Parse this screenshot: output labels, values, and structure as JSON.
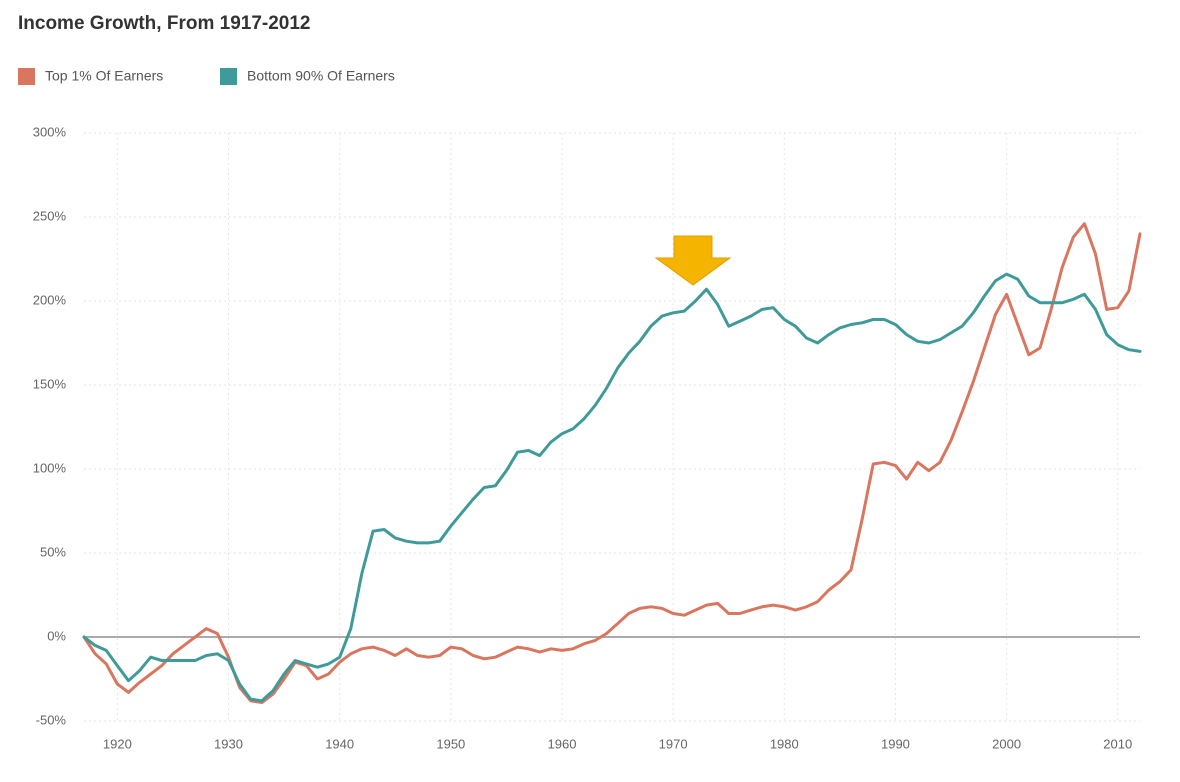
{
  "chart_data": {
    "type": "line",
    "title": "Income Growth, From 1917-2012",
    "x": [
      1917,
      1918,
      1919,
      1920,
      1921,
      1922,
      1923,
      1924,
      1925,
      1926,
      1927,
      1928,
      1929,
      1930,
      1931,
      1932,
      1933,
      1934,
      1935,
      1936,
      1937,
      1938,
      1939,
      1940,
      1941,
      1942,
      1943,
      1944,
      1945,
      1946,
      1947,
      1948,
      1949,
      1950,
      1951,
      1952,
      1953,
      1954,
      1955,
      1956,
      1957,
      1958,
      1959,
      1960,
      1961,
      1962,
      1963,
      1964,
      1965,
      1966,
      1967,
      1968,
      1969,
      1970,
      1971,
      1972,
      1973,
      1974,
      1975,
      1976,
      1977,
      1978,
      1979,
      1980,
      1981,
      1982,
      1983,
      1984,
      1985,
      1986,
      1987,
      1988,
      1989,
      1990,
      1991,
      1992,
      1993,
      1994,
      1995,
      1996,
      1997,
      1998,
      1999,
      2000,
      2001,
      2002,
      2003,
      2004,
      2005,
      2006,
      2007,
      2008,
      2009,
      2010,
      2011,
      2012
    ],
    "series": [
      {
        "name": "Top 1% Of Earners",
        "color": "#d9765f",
        "values": [
          0,
          -10,
          -16,
          -28,
          -33,
          -27,
          -22,
          -17,
          -10,
          -5,
          0,
          5,
          2,
          -12,
          -30,
          -38,
          -39,
          -34,
          -25,
          -15,
          -17,
          -25,
          -22,
          -15,
          -10,
          -7,
          -6,
          -8,
          -11,
          -7,
          -11,
          -12,
          -11,
          -6,
          -7,
          -11,
          -13,
          -12,
          -9,
          -6,
          -7,
          -9,
          -7,
          -8,
          -7,
          -4,
          -2,
          2,
          8,
          14,
          17,
          18,
          17,
          14,
          13,
          16,
          19,
          20,
          14,
          14,
          16,
          18,
          19,
          18,
          16,
          18,
          21,
          28,
          33,
          40,
          70,
          103,
          104,
          102,
          94,
          104,
          99,
          104,
          117,
          134,
          152,
          172,
          192,
          204,
          186,
          168,
          172,
          195,
          220,
          238,
          246,
          228,
          195,
          196,
          206,
          240
        ]
      },
      {
        "name": "Bottom 90% Of Earners",
        "color": "#3f9a9a",
        "values": [
          0,
          -5,
          -8,
          -17,
          -26,
          -20,
          -12,
          -14,
          -14,
          -14,
          -14,
          -11,
          -10,
          -14,
          -28,
          -37,
          -38,
          -32,
          -22,
          -14,
          -16,
          -18,
          -16,
          -12,
          5,
          38,
          63,
          64,
          59,
          57,
          56,
          56,
          57,
          66,
          74,
          82,
          89,
          90,
          99,
          110,
          111,
          108,
          116,
          121,
          124,
          130,
          138,
          148,
          160,
          169,
          176,
          185,
          191,
          193,
          194,
          200,
          207,
          198,
          185,
          188,
          191,
          195,
          196,
          189,
          185,
          178,
          175,
          180,
          184,
          186,
          187,
          189,
          189,
          186,
          180,
          176,
          175,
          177,
          181,
          185,
          193,
          203,
          212,
          216,
          213,
          203,
          199,
          199,
          199,
          201,
          204,
          195,
          180,
          174,
          171,
          170
        ]
      }
    ],
    "xlim": [
      1917,
      2012
    ],
    "xticks": [
      1920,
      1930,
      1940,
      1950,
      1960,
      1970,
      1980,
      1990,
      2000,
      2010
    ],
    "ylim": [
      -50,
      300
    ],
    "yticks": [
      {
        "value": -50,
        "label": "-50%"
      },
      {
        "value": 0,
        "label": "0%"
      },
      {
        "value": 50,
        "label": "50%"
      },
      {
        "value": 100,
        "label": "100%"
      },
      {
        "value": 150,
        "label": "150%"
      },
      {
        "value": 200,
        "label": "200%"
      },
      {
        "value": 250,
        "label": "250%"
      },
      {
        "value": 300,
        "label": "300%"
      }
    ],
    "grid": true
  }
}
